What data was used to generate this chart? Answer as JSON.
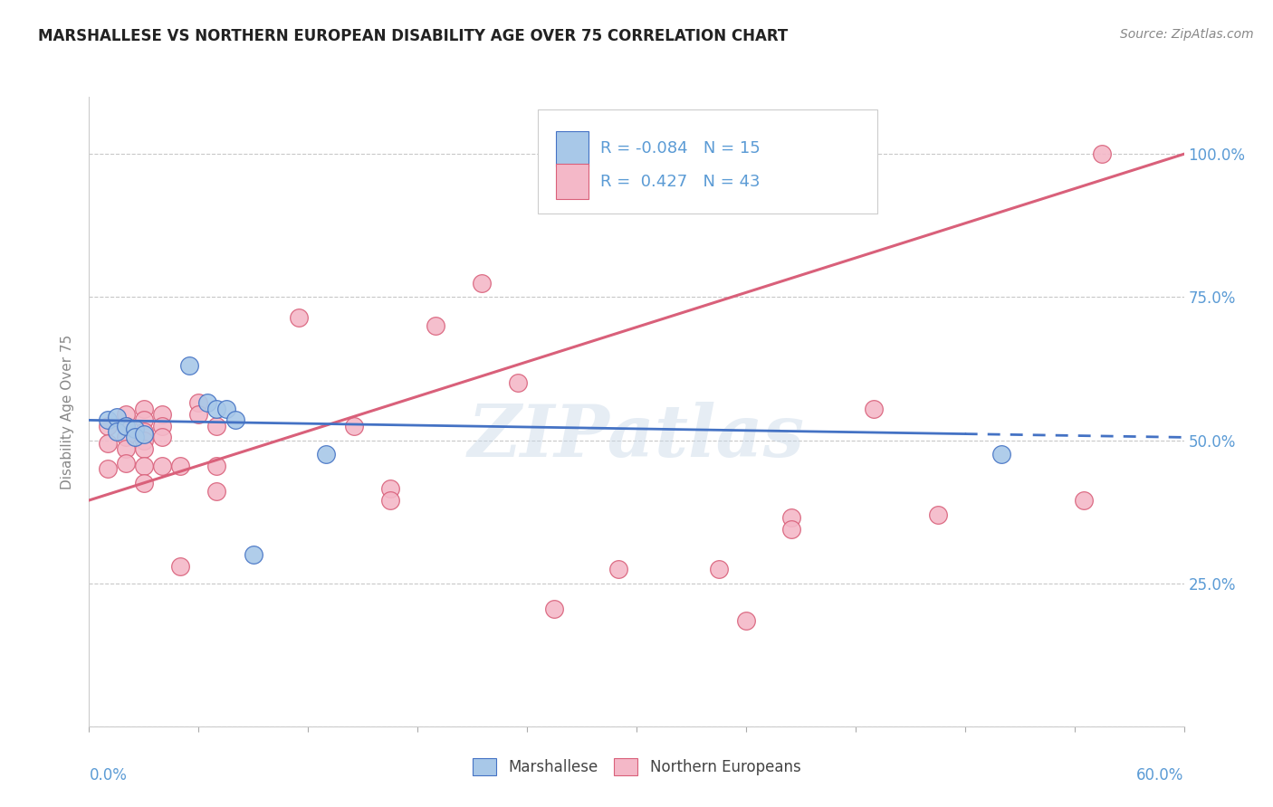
{
  "title": "MARSHALLESE VS NORTHERN EUROPEAN DISABILITY AGE OVER 75 CORRELATION CHART",
  "source": "Source: ZipAtlas.com",
  "ylabel": "Disability Age Over 75",
  "xlim": [
    0.0,
    0.6
  ],
  "ylim": [
    0.0,
    1.1
  ],
  "yticks": [
    0.0,
    0.25,
    0.5,
    0.75,
    1.0
  ],
  "ytick_labels": [
    "",
    "25.0%",
    "50.0%",
    "75.0%",
    "100.0%"
  ],
  "blue_color": "#a8c8e8",
  "pink_color": "#f4b8c8",
  "line_blue_color": "#4472c4",
  "line_pink_color": "#d9607a",
  "watermark": "ZIPatlas",
  "blue_points": [
    [
      0.01,
      0.535
    ],
    [
      0.015,
      0.54
    ],
    [
      0.015,
      0.515
    ],
    [
      0.02,
      0.525
    ],
    [
      0.025,
      0.52
    ],
    [
      0.025,
      0.505
    ],
    [
      0.03,
      0.51
    ],
    [
      0.055,
      0.63
    ],
    [
      0.065,
      0.565
    ],
    [
      0.07,
      0.555
    ],
    [
      0.075,
      0.555
    ],
    [
      0.08,
      0.535
    ],
    [
      0.09,
      0.3
    ],
    [
      0.13,
      0.475
    ],
    [
      0.5,
      0.475
    ]
  ],
  "pink_points": [
    [
      0.01,
      0.525
    ],
    [
      0.01,
      0.495
    ],
    [
      0.01,
      0.45
    ],
    [
      0.02,
      0.545
    ],
    [
      0.02,
      0.525
    ],
    [
      0.02,
      0.505
    ],
    [
      0.02,
      0.485
    ],
    [
      0.02,
      0.46
    ],
    [
      0.03,
      0.555
    ],
    [
      0.03,
      0.535
    ],
    [
      0.03,
      0.515
    ],
    [
      0.03,
      0.5
    ],
    [
      0.03,
      0.485
    ],
    [
      0.03,
      0.455
    ],
    [
      0.03,
      0.425
    ],
    [
      0.04,
      0.545
    ],
    [
      0.04,
      0.525
    ],
    [
      0.04,
      0.505
    ],
    [
      0.04,
      0.455
    ],
    [
      0.05,
      0.455
    ],
    [
      0.05,
      0.28
    ],
    [
      0.06,
      0.565
    ],
    [
      0.06,
      0.545
    ],
    [
      0.07,
      0.525
    ],
    [
      0.07,
      0.455
    ],
    [
      0.07,
      0.41
    ],
    [
      0.115,
      0.715
    ],
    [
      0.145,
      0.525
    ],
    [
      0.165,
      0.415
    ],
    [
      0.165,
      0.395
    ],
    [
      0.19,
      0.7
    ],
    [
      0.215,
      0.775
    ],
    [
      0.235,
      0.6
    ],
    [
      0.255,
      0.205
    ],
    [
      0.29,
      0.275
    ],
    [
      0.345,
      0.275
    ],
    [
      0.36,
      0.185
    ],
    [
      0.385,
      0.365
    ],
    [
      0.385,
      0.345
    ],
    [
      0.43,
      0.555
    ],
    [
      0.465,
      0.37
    ],
    [
      0.545,
      0.395
    ],
    [
      0.555,
      1.0
    ]
  ],
  "blue_line": {
    "x0": 0.0,
    "x1": 0.6,
    "y0": 0.535,
    "y1": 0.505
  },
  "blue_line_solid_end": 0.48,
  "pink_line": {
    "x0": 0.0,
    "x1": 0.6,
    "y0": 0.395,
    "y1": 1.0
  },
  "axis_tick_color": "#5b9bd5",
  "grid_color": "#c8c8c8",
  "background_color": "#ffffff",
  "title_fontsize": 12,
  "source_fontsize": 10,
  "legend_blue_r": "-0.084",
  "legend_blue_n": "15",
  "legend_pink_r": "0.427",
  "legend_pink_n": "43"
}
